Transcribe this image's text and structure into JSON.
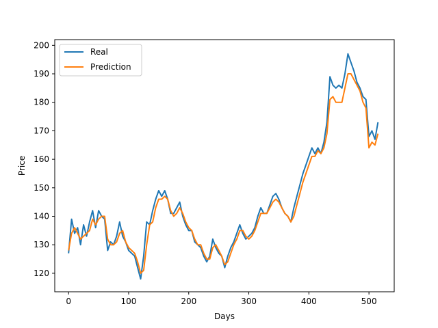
{
  "chart_data": {
    "type": "line",
    "xlabel": "Days",
    "ylabel": "Price",
    "xlim": [
      -23,
      542
    ],
    "ylim": [
      113.5,
      202
    ],
    "xticks": [
      0,
      100,
      200,
      300,
      400,
      500
    ],
    "yticks": [
      120,
      130,
      140,
      150,
      160,
      170,
      180,
      190,
      200
    ],
    "grid": false,
    "legend_position": "upper-left",
    "series": [
      {
        "name": "Real",
        "color": "#1f77b4",
        "x": [
          0,
          5,
          10,
          15,
          20,
          25,
          30,
          35,
          40,
          45,
          50,
          55,
          60,
          65,
          70,
          75,
          80,
          85,
          90,
          95,
          100,
          105,
          110,
          115,
          120,
          125,
          130,
          135,
          140,
          145,
          150,
          155,
          160,
          165,
          170,
          175,
          180,
          185,
          190,
          195,
          200,
          205,
          210,
          215,
          220,
          225,
          230,
          235,
          240,
          245,
          250,
          255,
          260,
          265,
          270,
          275,
          280,
          285,
          290,
          295,
          300,
          305,
          310,
          315,
          320,
          325,
          330,
          335,
          340,
          345,
          350,
          355,
          360,
          365,
          370,
          375,
          380,
          385,
          390,
          395,
          400,
          405,
          410,
          415,
          420,
          425,
          430,
          435,
          440,
          445,
          450,
          455,
          460,
          465,
          470,
          475,
          480,
          485,
          490,
          495,
          500,
          505,
          510,
          515
        ],
        "y": [
          127,
          139,
          134,
          136,
          130,
          137,
          133,
          138,
          142,
          136,
          142,
          140,
          139,
          128,
          131,
          130,
          133,
          138,
          133,
          131,
          128,
          127,
          126,
          122,
          118,
          126,
          138,
          137,
          142,
          146,
          149,
          147,
          149,
          146,
          141,
          141,
          143,
          145,
          140,
          137,
          135,
          135,
          131,
          130,
          129,
          126,
          124,
          126,
          132,
          129,
          127,
          126,
          122,
          126,
          129,
          131,
          134,
          137,
          134,
          132,
          133,
          134,
          136,
          140,
          143,
          141,
          141,
          144,
          147,
          148,
          146,
          143,
          141,
          140,
          138,
          143,
          147,
          151,
          155,
          158,
          161,
          164,
          162,
          164,
          162,
          166,
          173,
          189,
          186,
          185,
          186,
          185,
          190,
          197,
          194,
          191,
          187,
          185,
          182,
          181,
          168,
          170,
          167,
          173
        ]
      },
      {
        "name": "Prediction",
        "color": "#ff7f0e",
        "x": [
          0,
          5,
          10,
          15,
          20,
          25,
          30,
          35,
          40,
          45,
          50,
          55,
          60,
          65,
          70,
          75,
          80,
          85,
          90,
          95,
          100,
          105,
          110,
          115,
          120,
          125,
          130,
          135,
          140,
          145,
          150,
          155,
          160,
          165,
          170,
          175,
          180,
          185,
          190,
          195,
          200,
          205,
          210,
          215,
          220,
          225,
          230,
          235,
          240,
          245,
          250,
          255,
          260,
          265,
          270,
          275,
          280,
          285,
          290,
          295,
          300,
          305,
          310,
          315,
          320,
          325,
          330,
          335,
          340,
          345,
          350,
          355,
          360,
          365,
          370,
          375,
          380,
          385,
          390,
          395,
          400,
          405,
          410,
          415,
          420,
          425,
          430,
          435,
          440,
          445,
          450,
          455,
          460,
          465,
          470,
          475,
          480,
          485,
          490,
          495,
          500,
          505,
          510,
          515
        ],
        "y": [
          128,
          134,
          136,
          134,
          132,
          133,
          134,
          135,
          139,
          137,
          139,
          140,
          140,
          132,
          130,
          130,
          131,
          134,
          135,
          131,
          129,
          128,
          127,
          124,
          120,
          121,
          130,
          137,
          138,
          143,
          146,
          146,
          147,
          146,
          142,
          140,
          141,
          143,
          141,
          138,
          136,
          135,
          132,
          130,
          130,
          127,
          125,
          125,
          129,
          130,
          128,
          126,
          123,
          124,
          127,
          130,
          132,
          135,
          135,
          133,
          132,
          133,
          135,
          138,
          141,
          141,
          141,
          143,
          145,
          146,
          145,
          143,
          141,
          140,
          138,
          140,
          144,
          148,
          152,
          155,
          158,
          161,
          161,
          163,
          162,
          164,
          169,
          181,
          182,
          180,
          180,
          180,
          185,
          190,
          190,
          188,
          186,
          184,
          180,
          178,
          164,
          166,
          165,
          169
        ]
      }
    ]
  }
}
